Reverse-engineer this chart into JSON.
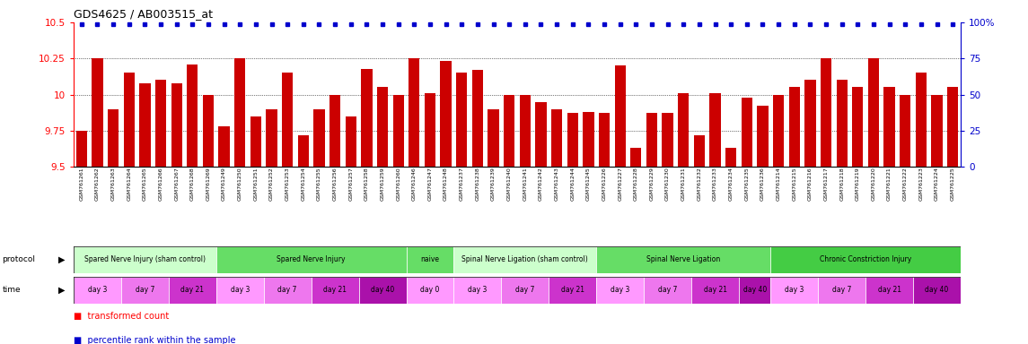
{
  "title": "GDS4625 / AB003515_at",
  "bar_color": "#cc0000",
  "dot_color": "#0000cc",
  "ylim": [
    9.5,
    10.5
  ],
  "yticks": [
    9.5,
    9.75,
    10.0,
    10.25,
    10.5
  ],
  "ytick_labels": [
    "9.5",
    "9.75",
    "10",
    "10.25",
    "10.5"
  ],
  "y2lim": [
    0,
    100
  ],
  "y2ticks": [
    0,
    25,
    50,
    75,
    100
  ],
  "y2tick_labels": [
    "0",
    "25",
    "50",
    "75",
    "100%"
  ],
  "samples": [
    "GSM761261",
    "GSM761262",
    "GSM761263",
    "GSM761264",
    "GSM761265",
    "GSM761266",
    "GSM761267",
    "GSM761268",
    "GSM761269",
    "GSM761249",
    "GSM761250",
    "GSM761251",
    "GSM761252",
    "GSM761253",
    "GSM761254",
    "GSM761255",
    "GSM761256",
    "GSM761257",
    "GSM761258",
    "GSM761259",
    "GSM761260",
    "GSM761246",
    "GSM761247",
    "GSM761248",
    "GSM761237",
    "GSM761238",
    "GSM761239",
    "GSM761240",
    "GSM761241",
    "GSM761242",
    "GSM761243",
    "GSM761244",
    "GSM761245",
    "GSM761226",
    "GSM761227",
    "GSM761228",
    "GSM761229",
    "GSM761230",
    "GSM761231",
    "GSM761232",
    "GSM761233",
    "GSM761234",
    "GSM761235",
    "GSM761236",
    "GSM761214",
    "GSM761215",
    "GSM761216",
    "GSM761217",
    "GSM761218",
    "GSM761219",
    "GSM761220",
    "GSM761221",
    "GSM761222",
    "GSM761223",
    "GSM761224",
    "GSM761225"
  ],
  "values": [
    9.75,
    10.25,
    9.9,
    10.15,
    10.08,
    10.1,
    10.08,
    10.21,
    10.0,
    9.78,
    10.25,
    9.85,
    9.9,
    10.15,
    9.72,
    9.9,
    10.0,
    9.85,
    10.18,
    10.05,
    10.0,
    10.25,
    10.01,
    10.23,
    10.15,
    10.17,
    9.9,
    10.0,
    10.0,
    9.95,
    9.9,
    9.87,
    9.88,
    9.87,
    10.2,
    9.63,
    9.87,
    9.87,
    10.01,
    9.72,
    10.01,
    9.63,
    9.98,
    9.92,
    10.0,
    10.05,
    10.1,
    10.25,
    10.1,
    10.05,
    10.25,
    10.05,
    10.0,
    10.15,
    10.0,
    10.05
  ],
  "protocol_groups": [
    {
      "label": "Spared Nerve Injury (sham control)",
      "count": 9,
      "color": "#ccffcc"
    },
    {
      "label": "Spared Nerve Injury",
      "count": 12,
      "color": "#66dd66"
    },
    {
      "label": "naive",
      "count": 3,
      "color": "#66dd66"
    },
    {
      "label": "Spinal Nerve Ligation (sham control)",
      "count": 9,
      "color": "#ccffcc"
    },
    {
      "label": "Spinal Nerve Ligation",
      "count": 11,
      "color": "#66dd66"
    },
    {
      "label": "Chronic Constriction Injury",
      "count": 12,
      "color": "#44cc44"
    }
  ],
  "time_color_map": {
    "day 0": "#ff99ff",
    "day 3": "#ff99ff",
    "day 7": "#ee77ee",
    "day 21": "#cc33cc",
    "day 40": "#aa11aa"
  },
  "time_groups": [
    {
      "label": "day 3",
      "count": 3
    },
    {
      "label": "day 7",
      "count": 3
    },
    {
      "label": "day 21",
      "count": 3
    },
    {
      "label": "day 3",
      "count": 3
    },
    {
      "label": "day 7",
      "count": 3
    },
    {
      "label": "day 21",
      "count": 3
    },
    {
      "label": "day 40",
      "count": 3
    },
    {
      "label": "day 0",
      "count": 3
    },
    {
      "label": "day 3",
      "count": 3
    },
    {
      "label": "day 7",
      "count": 3
    },
    {
      "label": "day 21",
      "count": 3
    },
    {
      "label": "day 3",
      "count": 3
    },
    {
      "label": "day 7",
      "count": 3
    },
    {
      "label": "day 21",
      "count": 3
    },
    {
      "label": "day 40",
      "count": 2
    },
    {
      "label": "day 3",
      "count": 3
    },
    {
      "label": "day 7",
      "count": 3
    },
    {
      "label": "day 21",
      "count": 3
    },
    {
      "label": "day 40",
      "count": 3
    }
  ]
}
